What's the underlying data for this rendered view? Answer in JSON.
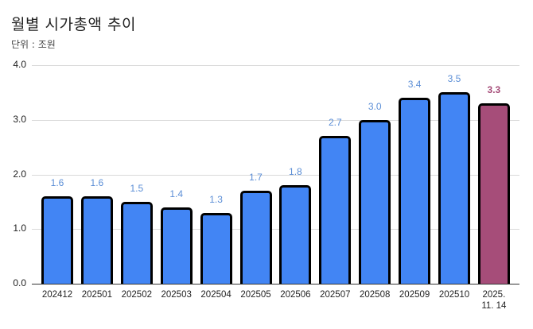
{
  "header": {
    "title": "월별 시가총액 추이",
    "unit_label": "단위 : 조원"
  },
  "colors": {
    "bar_default": "#4285f4",
    "bar_highlight": "#a64d79",
    "label_default": "#5b8ed6",
    "label_highlight": "#a64d79",
    "bar_border": "#000000"
  },
  "chart_data": {
    "type": "bar",
    "title": "월별 시가총액 추이",
    "subtitle": "단위 : 조원",
    "xlabel": "",
    "ylabel": "조원",
    "ylim": [
      0,
      4
    ],
    "yticks": [
      "0.0",
      "1.0",
      "2.0",
      "3.0",
      "4.0"
    ],
    "grid": true,
    "legend": "none",
    "categories": [
      "202412",
      "202501",
      "202502",
      "202503",
      "202504",
      "202505",
      "202506",
      "202507",
      "202508",
      "202509",
      "202510",
      "2025.\n11. 14"
    ],
    "values": [
      1.6,
      1.6,
      1.5,
      1.4,
      1.3,
      1.7,
      1.8,
      2.7,
      3.0,
      3.4,
      3.5,
      3.3
    ],
    "value_labels": [
      "1.6",
      "1.6",
      "1.5",
      "1.4",
      "1.3",
      "1.7",
      "1.8",
      "2.7",
      "3.0",
      "3.4",
      "3.5",
      "3.3"
    ],
    "highlight_index": 11
  }
}
